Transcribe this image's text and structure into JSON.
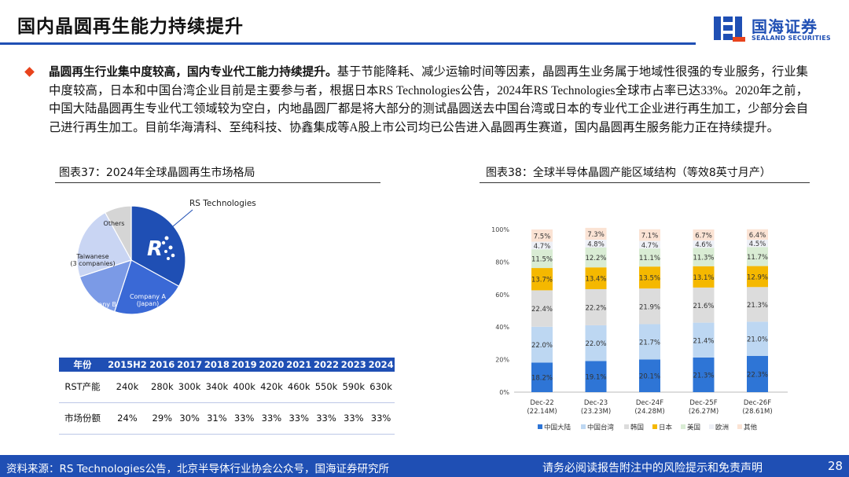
{
  "header": {
    "title": "国内晶圆再生能力持续提升",
    "accent": "#1f4fb4"
  },
  "logo": {
    "cn": "国海证券",
    "en": "SEALAND SECURITIES"
  },
  "body": {
    "bold": "晶圆再生行业集中度较高，国内专业代工能力持续提升。",
    "text": "基于节能降耗、减少运输时间等因素，晶圆再生业务属于地域性很强的专业服务，行业集中度较高，日本和中国台湾企业目前是主要参与者，根据日本RS Technologies公告，2024年RS Technologies全球市占率已达33%。2020年之前，中国大陆晶圆再生专业代工领域较为空白，内地晶圆厂都是将大部分的测试晶圆送去中国台湾或日本的专业代工企业进行再生加工，少部分会自己进行再生加工。目前华海清科、至纯科技、协鑫集成等A股上市公司均已公告进入晶圆再生赛道，国内晶圆再生服务能力正在持续提升。"
  },
  "fig37": {
    "title": "图表37：2024年全球晶圆再生市场格局"
  },
  "fig38": {
    "title": "图表38：全球半导体晶圆产能区域结构（等效8英寸月产）"
  },
  "table": {
    "header": [
      "年份",
      "2015H2",
      "2016",
      "2017",
      "2018",
      "2019",
      "2020",
      "2021",
      "2022",
      "2023",
      "2024"
    ],
    "rows": [
      [
        "RST产能",
        "240k",
        "280k",
        "300k",
        "340k",
        "400k",
        "420k",
        "460k",
        "550k",
        "590k",
        "630k"
      ],
      [
        "市场份额",
        "24%",
        "29%",
        "30%",
        "31%",
        "33%",
        "33%",
        "33%",
        "33%",
        "33%",
        "33%"
      ]
    ]
  },
  "footer": {
    "source": "资料来源：RS Technologies公告，北京半导体行业协会公众号，国海证券研究所",
    "disclaimer": "请务必阅读报告附注中的风险提示和免责声明",
    "page": "28"
  },
  "chart_data": [
    {
      "type": "pie",
      "annotation": "RS Technologies",
      "logo_text": "R",
      "slices": [
        {
          "label": "RS Technologies",
          "value": 33,
          "color": "#1f4fb4"
        },
        {
          "label": "Company A (Japan)",
          "value": 22,
          "color": "#3a69d6"
        },
        {
          "label": "Company B (Japan)",
          "value": 15,
          "color": "#7b9ae6"
        },
        {
          "label": "Taiwanese (3 companies)",
          "value": 22,
          "color": "#c9d5f3"
        },
        {
          "label": "Others",
          "value": 8,
          "color": "#d5d5d5"
        }
      ]
    },
    {
      "type": "bar",
      "stacked": true,
      "categories": [
        "Dec-22",
        "Dec-23",
        "Dec-24F",
        "Dec-25F",
        "Dec-26F"
      ],
      "category_sublabels": [
        "(22.14M)",
        "(23.23M)",
        "(24.28M)",
        "(26.27M)",
        "(28.61M)"
      ],
      "ylim": [
        0,
        100
      ],
      "yticks": [
        "0%",
        "20%",
        "40%",
        "60%",
        "80%",
        "100%"
      ],
      "legend_position": "bottom",
      "series": [
        {
          "name": "中国大陆",
          "color": "#2e75d6",
          "values": [
            18.2,
            19.1,
            20.1,
            21.3,
            22.3
          ]
        },
        {
          "name": "中国台湾",
          "color": "#bdd7f2",
          "values": [
            22.0,
            22.0,
            21.7,
            21.4,
            21.0
          ]
        },
        {
          "name": "韩国",
          "color": "#dcdcdc",
          "values": [
            22.4,
            22.2,
            21.9,
            21.6,
            21.3
          ]
        },
        {
          "name": "日本",
          "color": "#f5b800",
          "values": [
            13.7,
            13.4,
            13.5,
            13.1,
            12.9
          ]
        },
        {
          "name": "美国",
          "color": "#d9ecd4",
          "values": [
            11.5,
            12.2,
            11.1,
            11.3,
            11.7
          ]
        },
        {
          "name": "欧洲",
          "color": "#eef0f6",
          "values": [
            4.7,
            4.8,
            4.7,
            4.6,
            4.5
          ]
        },
        {
          "name": "其他",
          "color": "#fbe3d4",
          "values": [
            7.5,
            7.3,
            7.1,
            6.7,
            6.4
          ]
        }
      ]
    }
  ]
}
